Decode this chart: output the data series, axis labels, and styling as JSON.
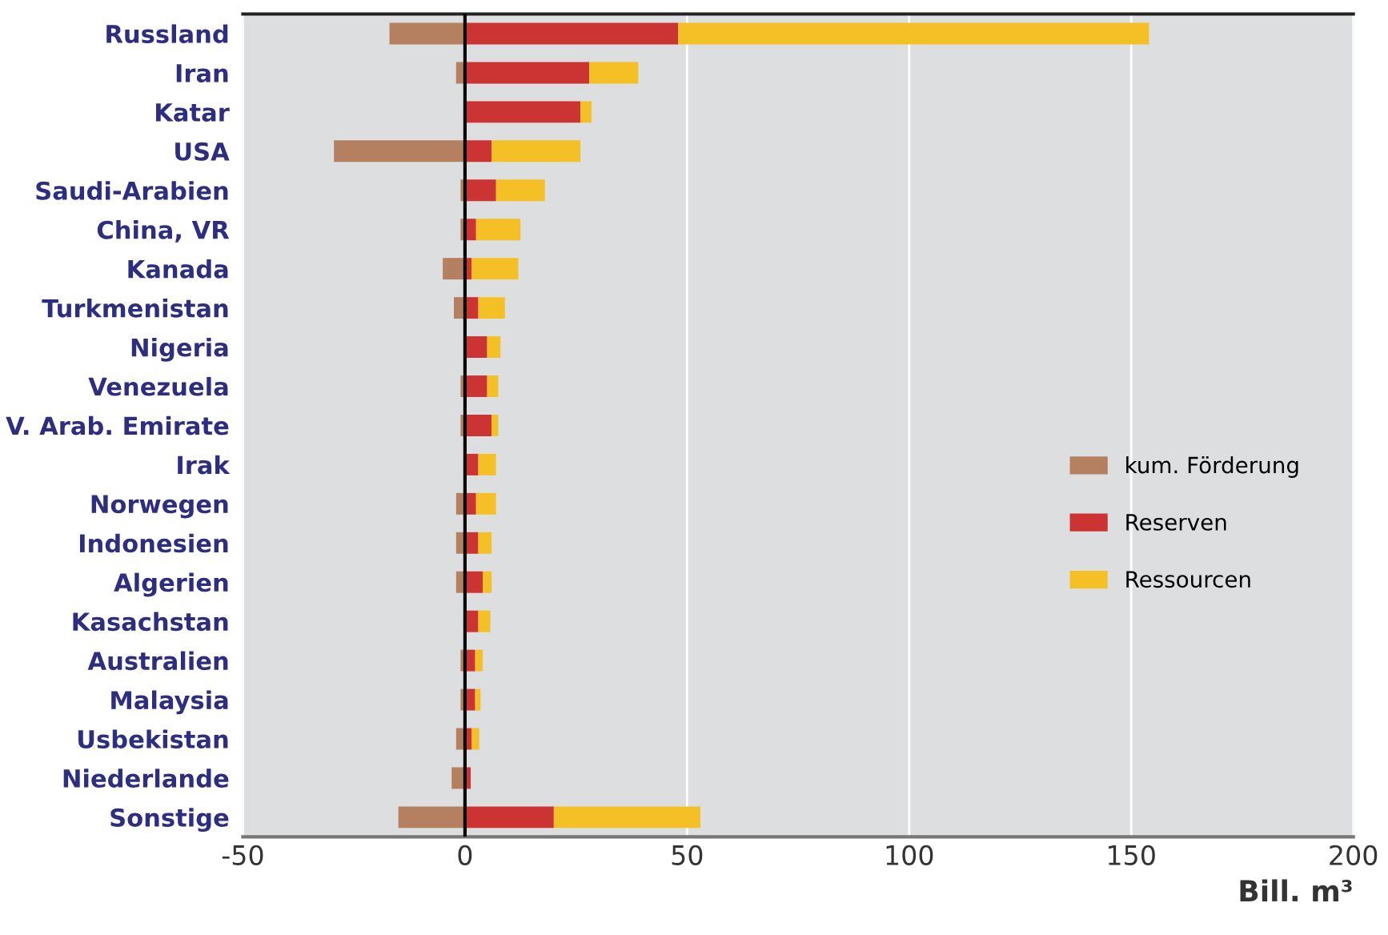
{
  "chart_data": {
    "type": "bar",
    "orientation": "horizontal",
    "stacked": true,
    "categories": [
      "Russland",
      "Iran",
      "Katar",
      "USA",
      "Saudi-Arabien",
      "China, VR",
      "Kanada",
      "Turkmenistan",
      "Nigeria",
      "Venezuela",
      "V. Arab. Emirate",
      "Irak",
      "Norwegen",
      "Indonesien",
      "Algerien",
      "Kasachstan",
      "Australien",
      "Malaysia",
      "Usbekistan",
      "Niederlande",
      "Sonstige"
    ],
    "series": [
      {
        "name": "kum. Förderung",
        "color": "#b5805f",
        "values": [
          -17,
          -2,
          0,
          -29.5,
          -1,
          -1,
          -5,
          -2.5,
          0,
          -1,
          -1,
          0,
          -2,
          -2,
          -2,
          0,
          -1,
          -1,
          -2,
          -3,
          -15
        ]
      },
      {
        "name": "Reserven",
        "color": "#cc3333",
        "values": [
          48,
          28,
          26,
          6,
          7,
          2.5,
          1.5,
          3,
          5,
          5,
          6,
          3,
          2.5,
          3,
          4,
          3,
          2.3,
          2.3,
          1.5,
          1.3,
          20
        ]
      },
      {
        "name": "Ressourcen",
        "color": "#f5c026",
        "values": [
          106,
          11,
          2.5,
          20,
          11,
          10,
          10.5,
          6,
          3,
          2.5,
          1.5,
          4,
          4.5,
          3,
          2,
          2.7,
          1.7,
          1.2,
          1.7,
          0,
          33
        ]
      }
    ],
    "xlabel": "Bill. m³",
    "xlim": [
      -50,
      200
    ],
    "xticks": [
      -50,
      0,
      50,
      100,
      150,
      200
    ],
    "ref_lines": [
      {
        "axis": "x",
        "value": 0,
        "label": null,
        "color": "#000000"
      }
    ],
    "grid": "x",
    "legend": "right"
  }
}
